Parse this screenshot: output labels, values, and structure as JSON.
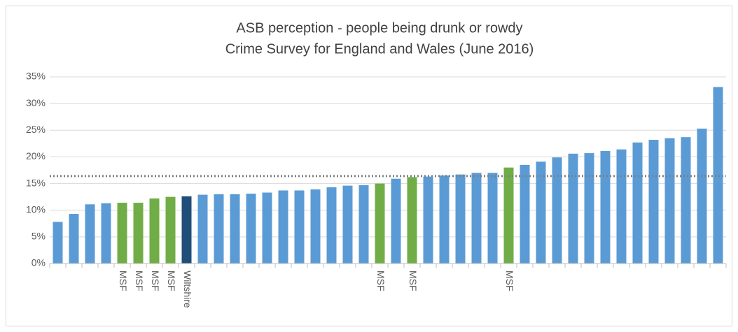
{
  "chart_data": {
    "type": "bar",
    "title": "ASB perception - people being drunk or rowdy",
    "subtitle": "Crime Survey for England and Wales (June 2016)",
    "categories": [
      null,
      null,
      null,
      null,
      "MSF",
      "MSF",
      "MSF",
      "MSF",
      "Wiltshire",
      null,
      null,
      null,
      null,
      null,
      null,
      null,
      null,
      null,
      null,
      null,
      "MSF",
      null,
      "MSF",
      null,
      null,
      null,
      null,
      null,
      "MSF",
      null,
      null,
      null,
      null,
      null,
      null,
      null,
      null,
      null,
      null,
      null,
      null,
      null
    ],
    "values": [
      7.8,
      9.3,
      11.1,
      11.3,
      11.4,
      11.4,
      12.2,
      12.5,
      12.6,
      12.9,
      13.0,
      13.0,
      13.1,
      13.3,
      13.7,
      13.7,
      13.9,
      14.3,
      14.6,
      14.7,
      15.0,
      15.9,
      16.2,
      16.3,
      16.5,
      16.7,
      17.0,
      17.0,
      18.0,
      18.5,
      19.1,
      19.9,
      20.6,
      20.7,
      21.1,
      21.4,
      22.7,
      23.2,
      23.5,
      23.7,
      25.3,
      33.1
    ],
    "colors": [
      "#5b9bd5",
      "#5b9bd5",
      "#5b9bd5",
      "#5b9bd5",
      "#70ad47",
      "#70ad47",
      "#70ad47",
      "#70ad47",
      "#1f4e79",
      "#5b9bd5",
      "#5b9bd5",
      "#5b9bd5",
      "#5b9bd5",
      "#5b9bd5",
      "#5b9bd5",
      "#5b9bd5",
      "#5b9bd5",
      "#5b9bd5",
      "#5b9bd5",
      "#5b9bd5",
      "#70ad47",
      "#5b9bd5",
      "#70ad47",
      "#5b9bd5",
      "#5b9bd5",
      "#5b9bd5",
      "#5b9bd5",
      "#5b9bd5",
      "#70ad47",
      "#5b9bd5",
      "#5b9bd5",
      "#5b9bd5",
      "#5b9bd5",
      "#5b9bd5",
      "#5b9bd5",
      "#5b9bd5",
      "#5b9bd5",
      "#5b9bd5",
      "#5b9bd5",
      "#5b9bd5",
      "#5b9bd5",
      "#5b9bd5"
    ],
    "reference_line": 16.4,
    "ylim": [
      0,
      35
    ],
    "yticks": [
      {
        "value": 0,
        "label": "0%"
      },
      {
        "value": 5,
        "label": "5%"
      },
      {
        "value": 10,
        "label": "10%"
      },
      {
        "value": 15,
        "label": "15%"
      },
      {
        "value": 20,
        "label": "20%"
      },
      {
        "value": 25,
        "label": "25%"
      },
      {
        "value": 30,
        "label": "30%"
      },
      {
        "value": 35,
        "label": "35%"
      }
    ],
    "grid": true
  }
}
